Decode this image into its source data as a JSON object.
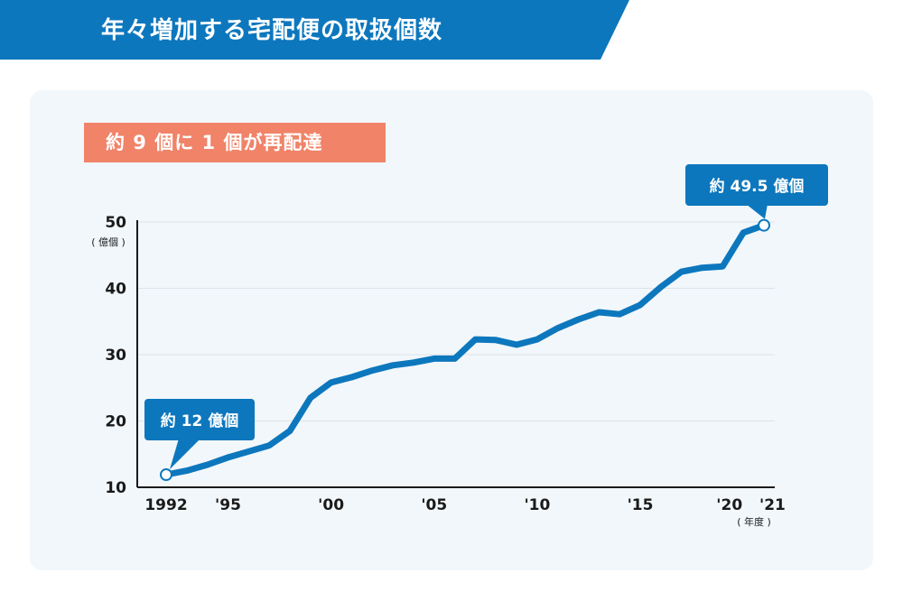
{
  "header": {
    "title": "年々増加する宅配便の取扱個数",
    "color": "#0d77bd"
  },
  "subtitle_badge": "約 9 個に 1 個が再配達",
  "accent_color": "#0d77bd",
  "badge_color": "#f08368",
  "chart_data": {
    "type": "line",
    "title": "年々増加する宅配便の取扱個数",
    "ylabel": "( 億個 )",
    "xlabel": "( 年度 )",
    "ylim": [
      10,
      50
    ],
    "yticks": [
      10,
      20,
      30,
      40,
      50
    ],
    "xlim": [
      1992,
      2021
    ],
    "xticks": [
      {
        "value": 1992,
        "label": "1992"
      },
      {
        "value": 1995,
        "label": "'95"
      },
      {
        "value": 2000,
        "label": "'00"
      },
      {
        "value": 2005,
        "label": "'05"
      },
      {
        "value": 2010,
        "label": "'10"
      },
      {
        "value": 2015,
        "label": "'15"
      },
      {
        "value": 2020,
        "label": "'20"
      },
      {
        "value": 2021,
        "label": "'21"
      }
    ],
    "grid": true,
    "series": [
      {
        "x": [
          1992,
          1993,
          1994,
          1995,
          1996,
          1997,
          1998,
          1999,
          2000,
          2001,
          2002,
          2003,
          2004,
          2005,
          2006,
          2007,
          2008,
          2009,
          2010,
          2011,
          2012,
          2013,
          2014,
          2015,
          2016,
          2017,
          2018,
          2019,
          2020,
          2021
        ],
        "values": [
          11.9,
          12.5,
          13.4,
          14.5,
          15.4,
          16.3,
          18.5,
          23.5,
          25.8,
          26.6,
          27.6,
          28.4,
          28.8,
          29.4,
          29.4,
          32.3,
          32.2,
          31.5,
          32.3,
          34.0,
          35.3,
          36.4,
          36.1,
          37.5,
          40.2,
          42.5,
          43.1,
          43.3,
          48.4,
          49.5
        ],
        "color": "#0d77bd"
      }
    ],
    "annotations": [
      {
        "text": "約 12 億個",
        "x": 1992,
        "y": 11.9
      },
      {
        "text": "約 49.5 億個",
        "x": 2021,
        "y": 49.5
      }
    ]
  }
}
